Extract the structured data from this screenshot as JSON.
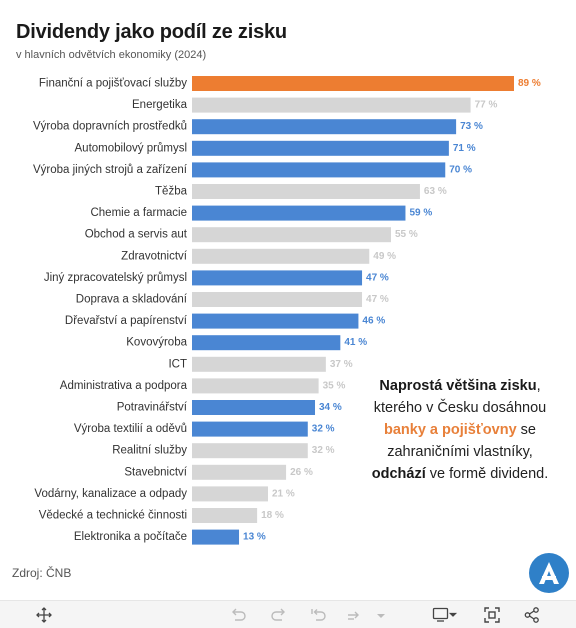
{
  "chart_data": {
    "type": "bar",
    "orientation": "horizontal",
    "title": "Dividendy jako podíl ze zisku",
    "subtitle": "v hlavních odvětvích ekonomiky (2024)",
    "xlim": [
      0,
      89
    ],
    "grid": false,
    "categories": [
      "Finanční a pojišťovací služby",
      "Energetika",
      "Výroba dopravních prostředků",
      "Automobilový průmysl",
      "Výroba jiných strojů a zařízení",
      "Těžba",
      "Chemie a farmacie",
      "Obchod a servis aut",
      "Zdravotnictví",
      "Jiný zpracovatelský průmysl",
      "Doprava a skladování",
      "Dřevařství a papírenství",
      "Kovovýroba",
      "ICT",
      "Administrativa a podpora",
      "Potravinářství",
      "Výroba textilií a oděvů",
      "Realitní služby",
      "Stavebnictví",
      "Vodárny, kanalizace a odpady",
      "Vědecké a technické činnosti",
      "Elektronika a počítače"
    ],
    "values": [
      89,
      77,
      73,
      71,
      70,
      63,
      59,
      55,
      49,
      47,
      47,
      46,
      41,
      37,
      35,
      34,
      32,
      32,
      26,
      21,
      18,
      13
    ],
    "value_labels": [
      "89 %",
      "77 %",
      "73 %",
      "71 %",
      "70 %",
      "63 %",
      "59 %",
      "55 %",
      "49 %",
      "47 %",
      "47 %",
      "46 %",
      "41 %",
      "37 %",
      "35 %",
      "34 %",
      "32 %",
      "32 %",
      "26 %",
      "21 %",
      "18 %",
      "13 %"
    ],
    "highlight": [
      "orange",
      "gray",
      "blue",
      "blue",
      "blue",
      "gray",
      "blue",
      "gray",
      "gray",
      "blue",
      "gray",
      "blue",
      "blue",
      "gray",
      "gray",
      "blue",
      "blue",
      "gray",
      "gray",
      "gray",
      "gray",
      "blue"
    ]
  },
  "colors": {
    "orange": "#ed7d31",
    "blue": "#4a86d3",
    "gray": "#d6d6d6",
    "orange_label": "#ed7d31",
    "blue_label": "#4a86d3",
    "gray_label": "#c8c8c8"
  },
  "annotation": {
    "part1": "Naprostá většina zisku",
    "part2": ", kterého v Česku dosáhnou ",
    "part3": "banky a pojišťovny",
    "part4": " se zahraničními vlastníky, ",
    "part5": "odchází",
    "part6": " ve formě dividend."
  },
  "source": "Zdroj: ČNB",
  "toolbar_icons": [
    "move-icon",
    "undo-icon",
    "redo-icon",
    "revert-icon",
    "refresh-icon",
    "pause-dropdown-icon",
    "download-icon",
    "fullscreen-icon",
    "share-icon"
  ]
}
